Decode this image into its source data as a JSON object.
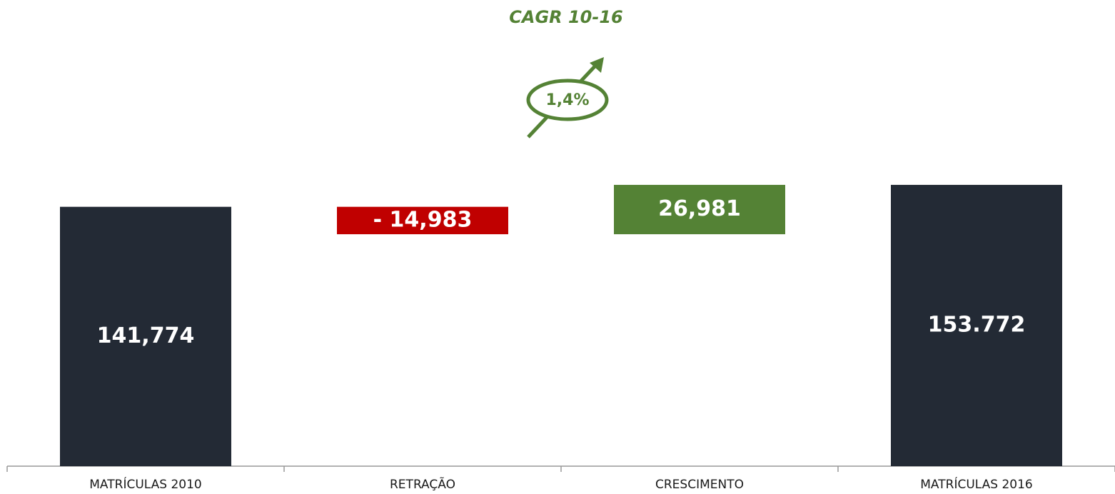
{
  "chart_data": {
    "type": "waterfall",
    "title": "CAGR 10-16",
    "annotation": "1,4%",
    "categories": [
      "MATRÍCULAS 2010",
      "RETRAÇÃO",
      "CRESCIMENTO",
      "MATRÍCULAS 2016"
    ],
    "values": [
      141774,
      -14983,
      26981,
      153772
    ],
    "value_labels": [
      "141,774",
      "- 14,983",
      "26,981",
      "153.772"
    ],
    "colors": [
      "#232a35",
      "#c00000",
      "#548235",
      "#232a35"
    ],
    "ylim": [
      0,
      160000
    ]
  }
}
